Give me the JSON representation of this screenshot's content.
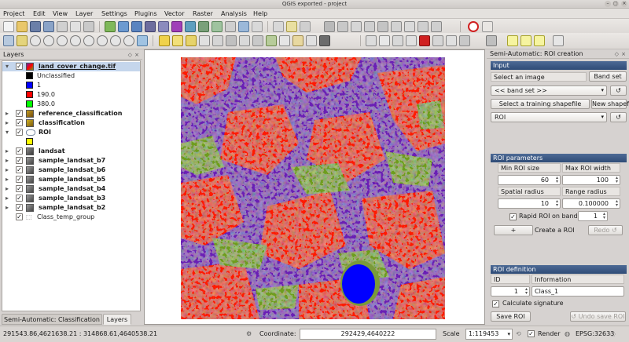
{
  "window": {
    "title": "QGIS exported - project"
  },
  "menu": [
    "Project",
    "Edit",
    "View",
    "Layer",
    "Settings",
    "Plugins",
    "Vector",
    "Raster",
    "Analysis",
    "Help"
  ],
  "layers_panel": {
    "title": "Layers",
    "items": [
      {
        "label": "land_cover_change.tif",
        "bold": true,
        "checked": true,
        "selected": true
      },
      {
        "label": "Unclassified",
        "swatch": "#000000"
      },
      {
        "label": "1",
        "swatch": "#0000ff"
      },
      {
        "label": "190.0",
        "swatch": "#ff0000"
      },
      {
        "label": "380.0",
        "swatch": "#00ff00"
      },
      {
        "label": "reference_classification",
        "bold": true,
        "checked": true
      },
      {
        "label": "classification",
        "bold": true,
        "checked": true
      },
      {
        "label": "ROI",
        "bold": true,
        "checked": true
      },
      {
        "label": "",
        "swatch": "#ffff00"
      },
      {
        "label": "landsat",
        "bold": true,
        "checked": true
      },
      {
        "label": "sample_landsat_b7",
        "bold": true,
        "checked": true
      },
      {
        "label": "sample_landsat_b6",
        "bold": true,
        "checked": true
      },
      {
        "label": "sample_landsat_b5",
        "bold": true,
        "checked": true
      },
      {
        "label": "sample_landsat_b4",
        "bold": true,
        "checked": true
      },
      {
        "label": "sample_landsat_b3",
        "bold": true,
        "checked": true
      },
      {
        "label": "sample_landsat_b2",
        "bold": true,
        "checked": true
      },
      {
        "label": "Class_temp_group",
        "bold": false,
        "checked": true
      }
    ],
    "tabs": [
      "Semi-Automatic: Classification",
      "Layers"
    ]
  },
  "roi_panel": {
    "title": "Semi-Automatic: ROI creation",
    "input_section": "Input",
    "select_image_label": "Select an image",
    "band_set_button": "Band set",
    "band_set_combo": "<< band set >>",
    "select_training_button": "Select a training shapefile",
    "new_shapefile_button": "New shapefile",
    "roi_combo": "ROI",
    "params_section": "ROI parameters",
    "min_roi_size_label": "Min ROI size",
    "max_roi_width_label": "Max ROI width",
    "min_roi_size": "60",
    "max_roi_width": "100",
    "spatial_radius_label": "Spatial radius",
    "range_radius_label": "Range radius",
    "spatial_radius": "10",
    "range_radius": "0.100000",
    "rapid_roi_label": "Rapid ROI on band",
    "rapid_roi_band": "1",
    "plus_button": "+",
    "create_roi_label": "Create a ROI",
    "redo_button": "Redo",
    "definition_section": "ROI definition",
    "id_label": "ID",
    "information_label": "Information",
    "id_value": "1",
    "information_value": "Class_1",
    "calc_signature_label": "Calculate signature",
    "save_roi_button": "Save ROI",
    "undo_save_button": "Undo save ROI"
  },
  "status_bar": {
    "extent": "291543.86,4621638.21 : 314868.61,4640538.21",
    "coordinate_label": "Coordinate:",
    "coordinate_value": "292429,4640222",
    "scale_label": "Scale",
    "scale_value": "1:119453",
    "render_label": "Render",
    "crs": "EPSG:32633"
  },
  "colors": {
    "accent": "#3c5a86",
    "land_red": "#ff0000",
    "land_purple": "#6a1fb5",
    "land_green": "#6e9d1d",
    "water_blue": "#0000ff"
  }
}
